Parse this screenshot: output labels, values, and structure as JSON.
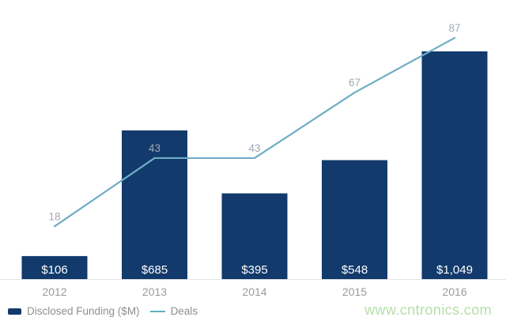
{
  "chart_data": {
    "type": "combo",
    "title": "",
    "categories": [
      "2012",
      "2013",
      "2014",
      "2015",
      "2016"
    ],
    "series": [
      {
        "name": "Disclosed Funding ($M)",
        "type": "bar",
        "values": [
          106,
          685,
          395,
          548,
          1049
        ],
        "value_labels": [
          "$106",
          "$685",
          "$395",
          "$548",
          "$1,049"
        ]
      },
      {
        "name": "Deals",
        "type": "line",
        "values": [
          18,
          43,
          43,
          67,
          87
        ],
        "point_labels": [
          "18",
          "43",
          "43",
          "67",
          "87"
        ]
      }
    ],
    "ylim_bar": [
      0,
      1049
    ],
    "ylim_line": [
      0,
      100
    ],
    "grid": false,
    "y_axis_visible": false,
    "legend_position": "bottom-left"
  },
  "legend": {
    "funding_label": "Disclosed Funding ($M)",
    "deals_label": "Deals"
  },
  "watermark": {
    "text": "www.cntronics.com"
  },
  "colors": {
    "bar": "#123a6c",
    "line": "#6fadc4",
    "value_label": "#ffffff",
    "point_label": "#9fa9b4",
    "axis_label": "#9b9b9b",
    "legend_text": "#8f8f8f",
    "axis_line": "#e3e3e3",
    "watermark": "#b5dfa8",
    "background": "#ffffff"
  }
}
